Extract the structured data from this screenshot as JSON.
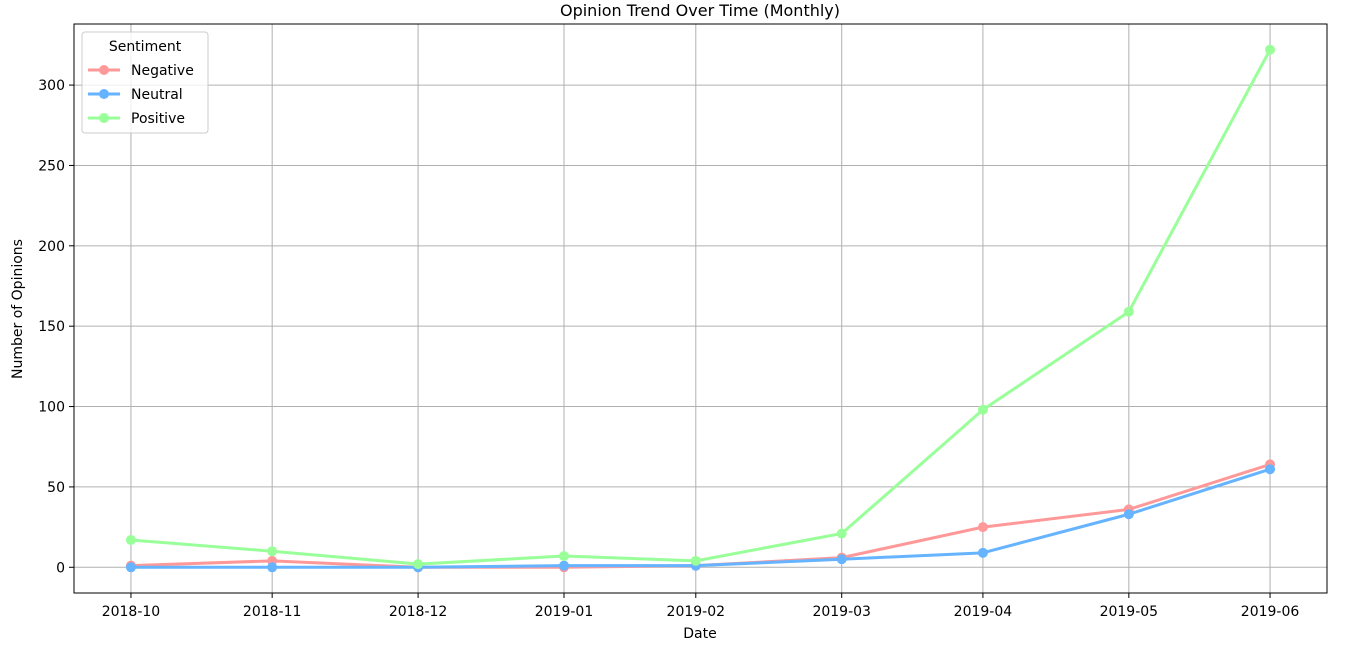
{
  "chart_data": {
    "type": "line",
    "title": "Opinion Trend Over Time (Monthly)",
    "xlabel": "Date",
    "ylabel": "Number of Opinions",
    "x": [
      "2018-10-31",
      "2018-11-30",
      "2018-12-31",
      "2019-01-31",
      "2019-02-28",
      "2019-03-31",
      "2019-04-30",
      "2019-05-31",
      "2019-06-30"
    ],
    "x_ticks": [
      "2018-10",
      "2018-11",
      "2018-12",
      "2019-01",
      "2019-02",
      "2019-03",
      "2019-04",
      "2019-05",
      "2019-06"
    ],
    "y_ticks": [
      0,
      50,
      100,
      150,
      200,
      250,
      300
    ],
    "ylim": [
      -16,
      338
    ],
    "grid": true,
    "legend": {
      "title": "Sentiment",
      "placement": "top-left"
    },
    "series": [
      {
        "name": "Negative",
        "color": "#ff9999",
        "values": [
          1,
          4,
          0,
          0,
          1,
          6,
          25,
          36,
          64
        ]
      },
      {
        "name": "Neutral",
        "color": "#66b3ff",
        "values": [
          0,
          0,
          0,
          1,
          1,
          5,
          9,
          33,
          61
        ]
      },
      {
        "name": "Positive",
        "color": "#99ff99",
        "values": [
          17,
          10,
          2,
          7,
          4,
          21,
          98,
          159,
          322
        ]
      }
    ]
  }
}
